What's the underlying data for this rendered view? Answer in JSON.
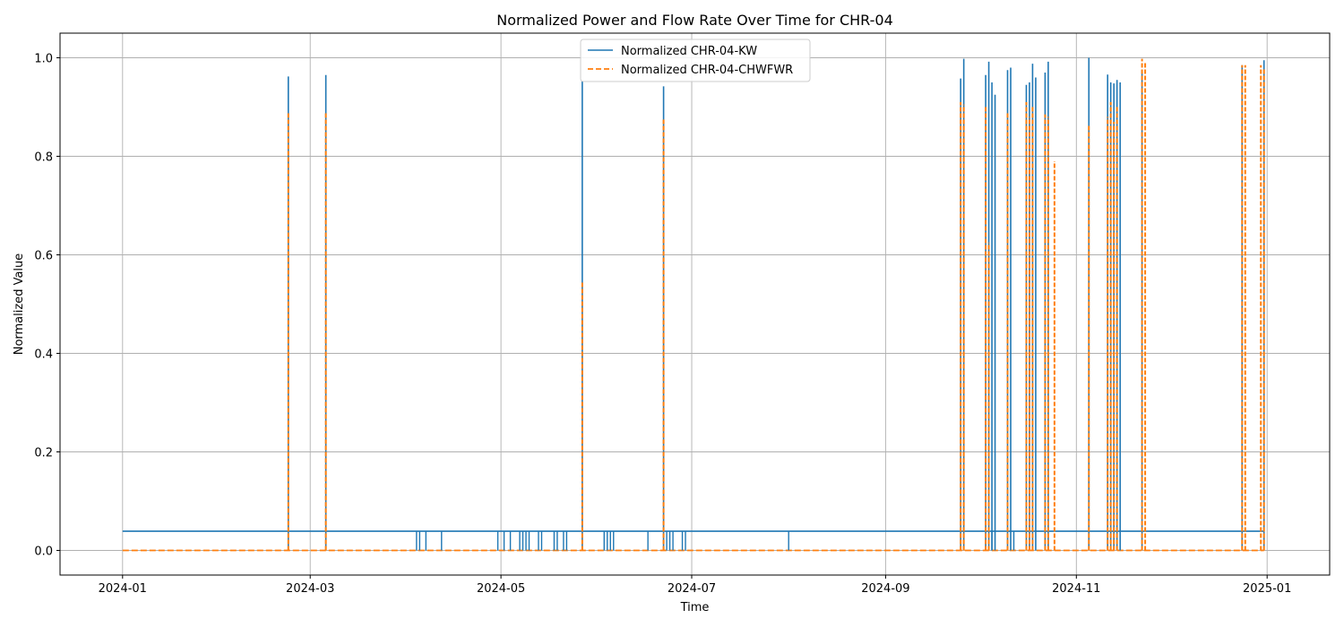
{
  "chart_data": {
    "type": "line",
    "title": "Normalized Power and Flow Rate Over Time for CHR-04",
    "xlabel": "Time",
    "ylabel": "Normalized Value",
    "xlim": [
      "2023-12-12",
      "2025-01-21"
    ],
    "ylim": [
      -0.05,
      1.05
    ],
    "x_ticks": [
      "2024-01",
      "2024-03",
      "2024-05",
      "2024-07",
      "2024-09",
      "2024-11",
      "2025-01"
    ],
    "y_ticks": [
      "0.0",
      "0.2",
      "0.4",
      "0.6",
      "0.8",
      "1.0"
    ],
    "grid": true,
    "legend_position": "top-center",
    "series": [
      {
        "name": "Normalized CHR-04-KW",
        "color": "#1f77b4",
        "style": "solid",
        "baseline": 0.039,
        "x_range": [
          "2024-01-01",
          "2024-12-31"
        ],
        "dips_to_zero": [
          "2024-04-04",
          "2024-04-05",
          "2024-04-07",
          "2024-04-12",
          "2024-04-30",
          "2024-05-02",
          "2024-05-04",
          "2024-05-07",
          "2024-05-08",
          "2024-05-09",
          "2024-05-10",
          "2024-05-13",
          "2024-05-14",
          "2024-05-18",
          "2024-05-19",
          "2024-05-21",
          "2024-05-22",
          "2024-06-03",
          "2024-06-04",
          "2024-06-05",
          "2024-06-06",
          "2024-06-17",
          "2024-06-23",
          "2024-06-24",
          "2024-06-25",
          "2024-06-28",
          "2024-06-29",
          "2024-08-01",
          "2024-10-05",
          "2024-10-12"
        ],
        "spikes": [
          {
            "x": "2024-02-23",
            "y": 0.962
          },
          {
            "x": "2024-03-06",
            "y": 0.965
          },
          {
            "x": "2024-05-27",
            "y": 0.952
          },
          {
            "x": "2024-06-22",
            "y": 0.942
          },
          {
            "x": "2024-09-25",
            "y": 0.958
          },
          {
            "x": "2024-09-26",
            "y": 0.998
          },
          {
            "x": "2024-10-03",
            "y": 0.965
          },
          {
            "x": "2024-10-04",
            "y": 0.992
          },
          {
            "x": "2024-10-05",
            "y": 0.95
          },
          {
            "x": "2024-10-06",
            "y": 0.925
          },
          {
            "x": "2024-10-10",
            "y": 0.975
          },
          {
            "x": "2024-10-11",
            "y": 0.98
          },
          {
            "x": "2024-10-16",
            "y": 0.945
          },
          {
            "x": "2024-10-17",
            "y": 0.95
          },
          {
            "x": "2024-10-18",
            "y": 0.988
          },
          {
            "x": "2024-10-19",
            "y": 0.96
          },
          {
            "x": "2024-10-22",
            "y": 0.97
          },
          {
            "x": "2024-10-23",
            "y": 0.992
          },
          {
            "x": "2024-11-05",
            "y": 1.0
          },
          {
            "x": "2024-11-11",
            "y": 0.966
          },
          {
            "x": "2024-11-12",
            "y": 0.95
          },
          {
            "x": "2024-11-13",
            "y": 0.948
          },
          {
            "x": "2024-11-14",
            "y": 0.955
          },
          {
            "x": "2024-11-15",
            "y": 0.95
          },
          {
            "x": "2024-11-22",
            "y": 0.975
          },
          {
            "x": "2024-12-24",
            "y": 0.985
          },
          {
            "x": "2024-12-31",
            "y": 0.995
          }
        ]
      },
      {
        "name": "Normalized CHR-04-CHWFWR",
        "color": "#ff7f0e",
        "style": "dashed",
        "baseline": 0.0,
        "x_range": [
          "2024-01-01",
          "2024-12-31"
        ],
        "spikes": [
          {
            "x": "2024-02-23",
            "y": 0.89
          },
          {
            "x": "2024-03-06",
            "y": 0.89
          },
          {
            "x": "2024-05-27",
            "y": 0.545
          },
          {
            "x": "2024-06-22",
            "y": 0.875
          },
          {
            "x": "2024-09-25",
            "y": 0.91
          },
          {
            "x": "2024-09-26",
            "y": 0.905
          },
          {
            "x": "2024-10-03",
            "y": 0.9
          },
          {
            "x": "2024-10-04",
            "y": 0.625
          },
          {
            "x": "2024-10-10",
            "y": 0.89
          },
          {
            "x": "2024-10-16",
            "y": 0.91
          },
          {
            "x": "2024-10-17",
            "y": 0.88
          },
          {
            "x": "2024-10-18",
            "y": 0.9
          },
          {
            "x": "2024-10-22",
            "y": 0.885
          },
          {
            "x": "2024-10-23",
            "y": 0.88
          },
          {
            "x": "2024-10-25",
            "y": 0.79
          },
          {
            "x": "2024-11-05",
            "y": 0.865
          },
          {
            "x": "2024-11-11",
            "y": 0.88
          },
          {
            "x": "2024-11-12",
            "y": 0.91
          },
          {
            "x": "2024-11-13",
            "y": 0.87
          },
          {
            "x": "2024-11-14",
            "y": 0.9
          },
          {
            "x": "2024-11-22",
            "y": 0.998
          },
          {
            "x": "2024-11-23",
            "y": 0.99
          },
          {
            "x": "2024-12-24",
            "y": 0.985
          },
          {
            "x": "2024-12-25",
            "y": 0.985
          },
          {
            "x": "2024-12-30",
            "y": 0.985
          },
          {
            "x": "2024-12-31",
            "y": 0.98
          }
        ]
      }
    ]
  }
}
